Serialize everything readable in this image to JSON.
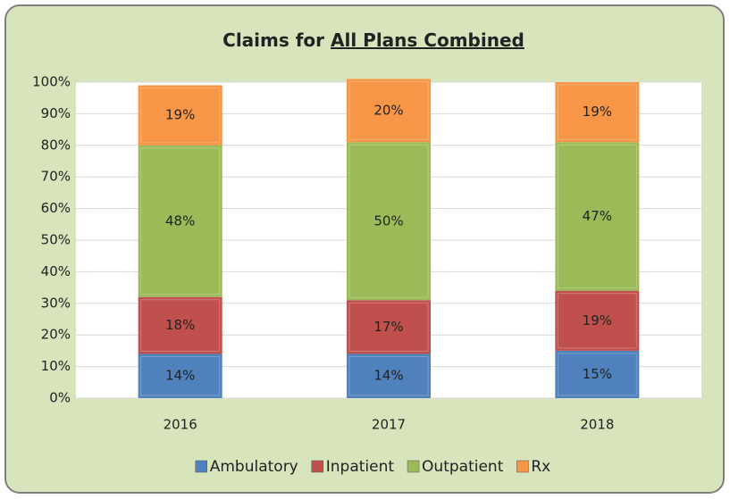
{
  "chart_data": {
    "type": "stacked_bar",
    "title": "Claims for",
    "title_underlined": "All Plans Combined",
    "categories": [
      "2016",
      "2017",
      "2018"
    ],
    "series": [
      {
        "name": "Ambulatory",
        "color": "#4f81bd",
        "values": [
          14,
          14,
          15
        ],
        "value_labels": [
          "14%",
          "14%",
          "15%"
        ]
      },
      {
        "name": "Inpatient",
        "color": "#c0504d",
        "values": [
          18,
          17,
          19
        ],
        "value_labels": [
          "18%",
          "17%",
          "19%"
        ]
      },
      {
        "name": "Outpatient",
        "color": "#9bbb59",
        "values": [
          48,
          50,
          47
        ],
        "value_labels": [
          "48%",
          "50%",
          "47%"
        ]
      },
      {
        "name": "Rx",
        "color": "#f79646",
        "values": [
          19,
          20,
          19
        ],
        "value_labels": [
          "19%",
          "20%",
          "19%"
        ]
      }
    ],
    "ylim": [
      0,
      100
    ],
    "yticks": [
      {
        "value": 0,
        "label": "0%"
      },
      {
        "value": 10,
        "label": "10%"
      },
      {
        "value": 20,
        "label": "20%"
      },
      {
        "value": 30,
        "label": "30%"
      },
      {
        "value": 40,
        "label": "40%"
      },
      {
        "value": 50,
        "label": "50%"
      },
      {
        "value": 60,
        "label": "60%"
      },
      {
        "value": 70,
        "label": "70%"
      },
      {
        "value": 80,
        "label": "80%"
      },
      {
        "value": 90,
        "label": "90%"
      },
      {
        "value": 100,
        "label": "100%"
      }
    ],
    "grid": true,
    "legend": "bottom"
  }
}
